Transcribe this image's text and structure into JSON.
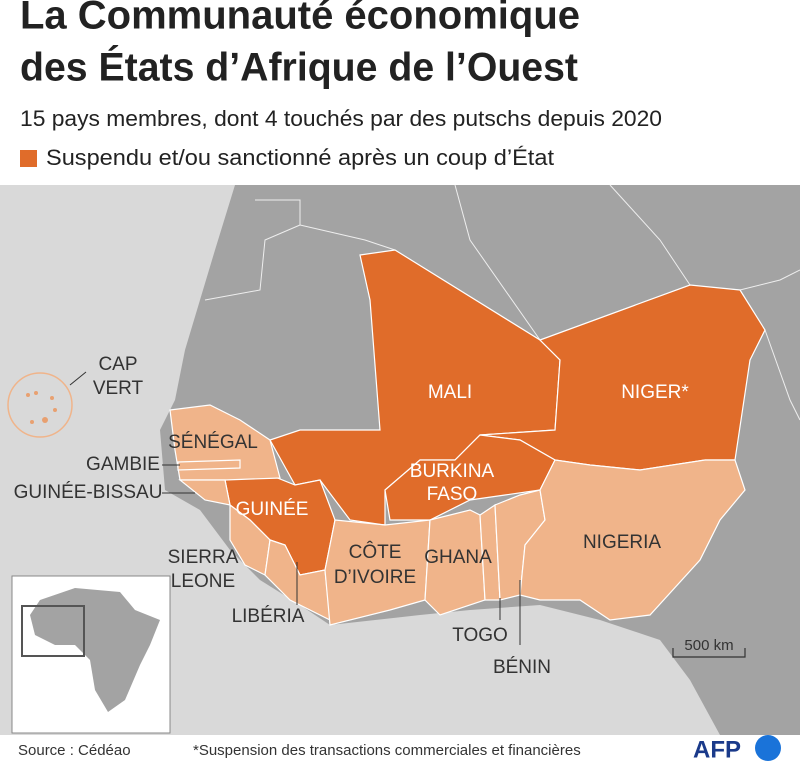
{
  "header": {
    "title": [
      "La Communauté économique",
      "des États d’Afrique de l’Ouest"
    ],
    "subtitle": "15 pays membres, dont 4 touchés par des putschs depuis 2020"
  },
  "legend": {
    "label": "Suspendu et/ou sanctionné après un coup d’État"
  },
  "map": {
    "labels": {
      "cap_vert": [
        "CAP",
        "VERT"
      ],
      "senegal": "SÉNÉGAL",
      "gambie": "GAMBIE",
      "guinee_bissau": "GUINÉE-BISSAU",
      "guinee": "GUINÉE",
      "sierra_leone": [
        "SIERRA",
        "LEONE"
      ],
      "liberia": "LIBÉRIA",
      "cote_divoire": [
        "CÔTE",
        "D’IVOIRE"
      ],
      "ghana": "GHANA",
      "togo": "TOGO",
      "benin": "BÉNIN",
      "burkina_faso": [
        "BURKINA",
        "FASO"
      ],
      "mali": "MALI",
      "niger": "NIGER*",
      "nigeria": "NIGERIA"
    },
    "scale": "500 km"
  },
  "footer": {
    "source": "Source : Cédéao",
    "note": "*Suspension des transactions commerciales et financières",
    "logo": "AFP"
  }
}
